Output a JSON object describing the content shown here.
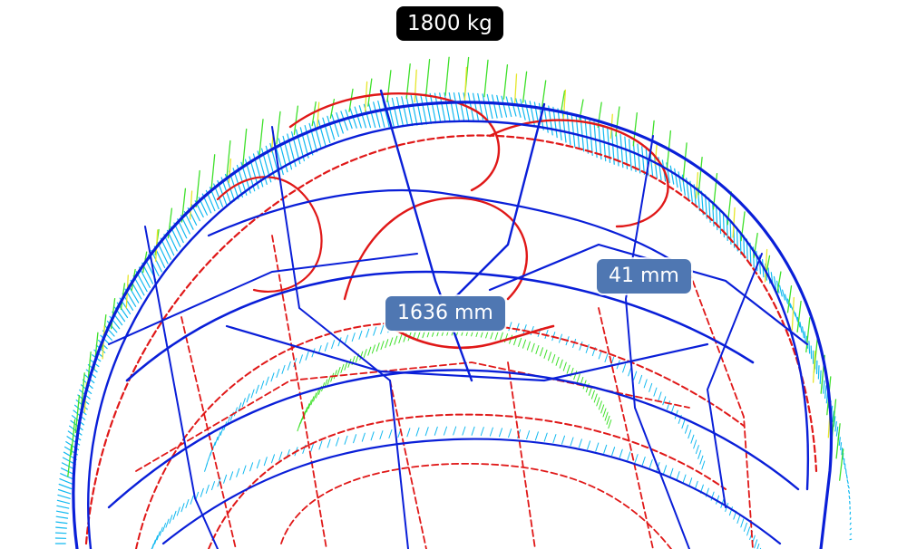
{
  "load_label": "1800 kg",
  "dimensions": {
    "main": "1636 mm",
    "secondary": "41 mm"
  },
  "colors": {
    "structure_blue": "#0a1fd8",
    "structure_red": "#e01818",
    "force_cyan": "#12b9f0",
    "force_green": "#3ee02a",
    "force_yellow": "#e6e62a",
    "label_dark": "#000000",
    "label_blue": "#4f77b2"
  }
}
